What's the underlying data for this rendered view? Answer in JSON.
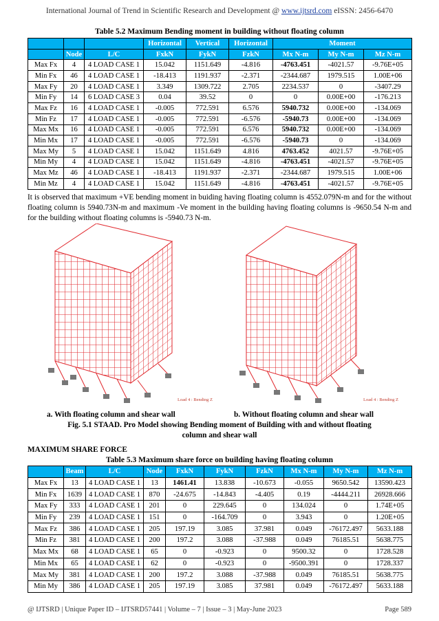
{
  "header": {
    "journal": "International Journal of Trend in Scientific Research and Development @",
    "site": "www.ijtsrd.com",
    "issn": "eISSN: 2456-6470"
  },
  "table1": {
    "title": "Table 5.2 Maximum Bending moment in building without floating column",
    "groups": [
      "Horizontal",
      "Vertical",
      "Horizontal",
      "Moment"
    ],
    "columns": [
      "Node",
      "L/C",
      "FxkN",
      "FykN",
      "FzkN",
      "Mx N-m",
      "My N-m",
      "Mz N-m"
    ],
    "rows": [
      [
        "Max Fx",
        "4",
        "4 LOAD CASE 1",
        "15.042",
        "1151.649",
        "-4.816",
        "-4763.451",
        "-4021.57",
        "-9.76E+05"
      ],
      [
        "Min Fx",
        "46",
        "4 LOAD CASE 1",
        "-18.413",
        "1191.937",
        "-2.371",
        "-2344.687",
        "1979.515",
        "1.00E+06"
      ],
      [
        "Max Fy",
        "20",
        "4 LOAD CASE 1",
        "3.349",
        "1309.722",
        "2.705",
        "2234.537",
        "0",
        "-3407.29"
      ],
      [
        "Min Fy",
        "14",
        "6 LOAD CASE 3",
        "0.04",
        "39.52",
        "0",
        "0",
        "0.00E+00",
        "-176.213"
      ],
      [
        "Max Fz",
        "16",
        "4 LOAD CASE 1",
        "-0.005",
        "772.591",
        "6.576",
        "5940.732",
        "0.00E+00",
        "-134.069"
      ],
      [
        "Min Fz",
        "17",
        "4 LOAD CASE 1",
        "-0.005",
        "772.591",
        "-6.576",
        "-5940.73",
        "0.00E+00",
        "-134.069"
      ],
      [
        "Max Mx",
        "16",
        "4 LOAD CASE 1",
        "-0.005",
        "772.591",
        "6.576",
        "5940.732",
        "0.00E+00",
        "-134.069"
      ],
      [
        "Min Mx",
        "17",
        "4 LOAD CASE 1",
        "-0.005",
        "772.591",
        "-6.576",
        "-5940.73",
        "0",
        "-134.069"
      ],
      [
        "Max My",
        "5",
        "4 LOAD CASE 1",
        "15.042",
        "1151.649",
        "4.816",
        "4763.452",
        "4021.57",
        "-9.76E+05"
      ],
      [
        "Min My",
        "4",
        "4 LOAD CASE 1",
        "15.042",
        "1151.649",
        "-4.816",
        "-4763.451",
        "-4021.57",
        "-9.76E+05"
      ],
      [
        "Max Mz",
        "46",
        "4 LOAD CASE 1",
        "-18.413",
        "1191.937",
        "-2.371",
        "-2344.687",
        "1979.515",
        "1.00E+06"
      ],
      [
        "Min Mz",
        "4",
        "4 LOAD CASE 1",
        "15.042",
        "1151.649",
        "-4.816",
        "-4763.451",
        "-4021.57",
        "-9.76E+05"
      ]
    ],
    "bold_cells": [
      [
        0,
        6
      ],
      [
        4,
        6
      ],
      [
        5,
        6
      ],
      [
        6,
        6
      ],
      [
        7,
        6
      ],
      [
        8,
        6
      ],
      [
        9,
        6
      ],
      [
        11,
        6
      ]
    ]
  },
  "paragraph": "It is observed that maximum +VE bending moment in buiding having floating column is 4552.079N-m and for the without floating column is 5940.73N-m and maximum -Ve moment in the building having floating columns is -9650.54 N-m and for the building without floating columns is -5940.73 N-m.",
  "figure": {
    "legend_a": "Load 4 : Bending Z",
    "legend_b": "Load 4 : Bending Z",
    "caption_a": "a. With floating column and shear wall",
    "caption_b": "b. Without floating column and shear wall",
    "caption": "Fig. 5.1 STAAD. Pro Model showing Bending moment of Building with and without floating column and shear wall"
  },
  "section_heading": "MAXIMUM SHARE FORCE",
  "table2": {
    "title": "Table 5.3 Maximum share force on building having floating column",
    "columns": [
      "Beam",
      "L/C",
      "Node",
      "FxkN",
      "FykN",
      "FzkN",
      "Mx N-m",
      "My N-m",
      "Mz N-m"
    ],
    "rows": [
      [
        "Max Fx",
        "13",
        "4 LOAD CASE 1",
        "13",
        "1461.41",
        "13.838",
        "-10.673",
        "-0.055",
        "9650.542",
        "13590.423"
      ],
      [
        "Min Fx",
        "1639",
        "4 LOAD CASE 1",
        "870",
        "-24.675",
        "-14.843",
        "-4.405",
        "0.19",
        "-4444.211",
        "26928.666"
      ],
      [
        "Max Fy",
        "333",
        "4 LOAD CASE 1",
        "201",
        "0",
        "229.645",
        "0",
        "134.024",
        "0",
        "1.74E+05"
      ],
      [
        "Min Fy",
        "239",
        "4 LOAD CASE 1",
        "151",
        "0",
        "-164.709",
        "0",
        "3.943",
        "0",
        "1.20E+05"
      ],
      [
        "Max Fz",
        "386",
        "4 LOAD CASE 1",
        "205",
        "197.19",
        "3.085",
        "37.981",
        "0.049",
        "-76172.497",
        "5633.188"
      ],
      [
        "Min Fz",
        "381",
        "4 LOAD CASE 1",
        "200",
        "197.2",
        "3.088",
        "-37.988",
        "0.049",
        "76185.51",
        "5638.775"
      ],
      [
        "Max Mx",
        "68",
        "4 LOAD CASE 1",
        "65",
        "0",
        "-0.923",
        "0",
        "9500.32",
        "0",
        "1728.528"
      ],
      [
        "Min Mx",
        "65",
        "4 LOAD CASE 1",
        "62",
        "0",
        "-0.923",
        "0",
        "-9500.391",
        "0",
        "1728.337"
      ],
      [
        "Max My",
        "381",
        "4 LOAD CASE 1",
        "200",
        "197.2",
        "3.088",
        "-37.988",
        "0.049",
        "76185.51",
        "5638.775"
      ],
      [
        "Min My",
        "386",
        "4 LOAD CASE 1",
        "205",
        "197.19",
        "3.085",
        "37.981",
        "0.049",
        "-76172.497",
        "5633.188"
      ]
    ],
    "bold_cells": [
      [
        0,
        4
      ]
    ]
  },
  "footer": {
    "left": "@ IJTSRD | Unique Paper ID – IJTSRD57441 | Volume – 7 | Issue – 3 | May-June 2023",
    "right": "Page 589"
  }
}
